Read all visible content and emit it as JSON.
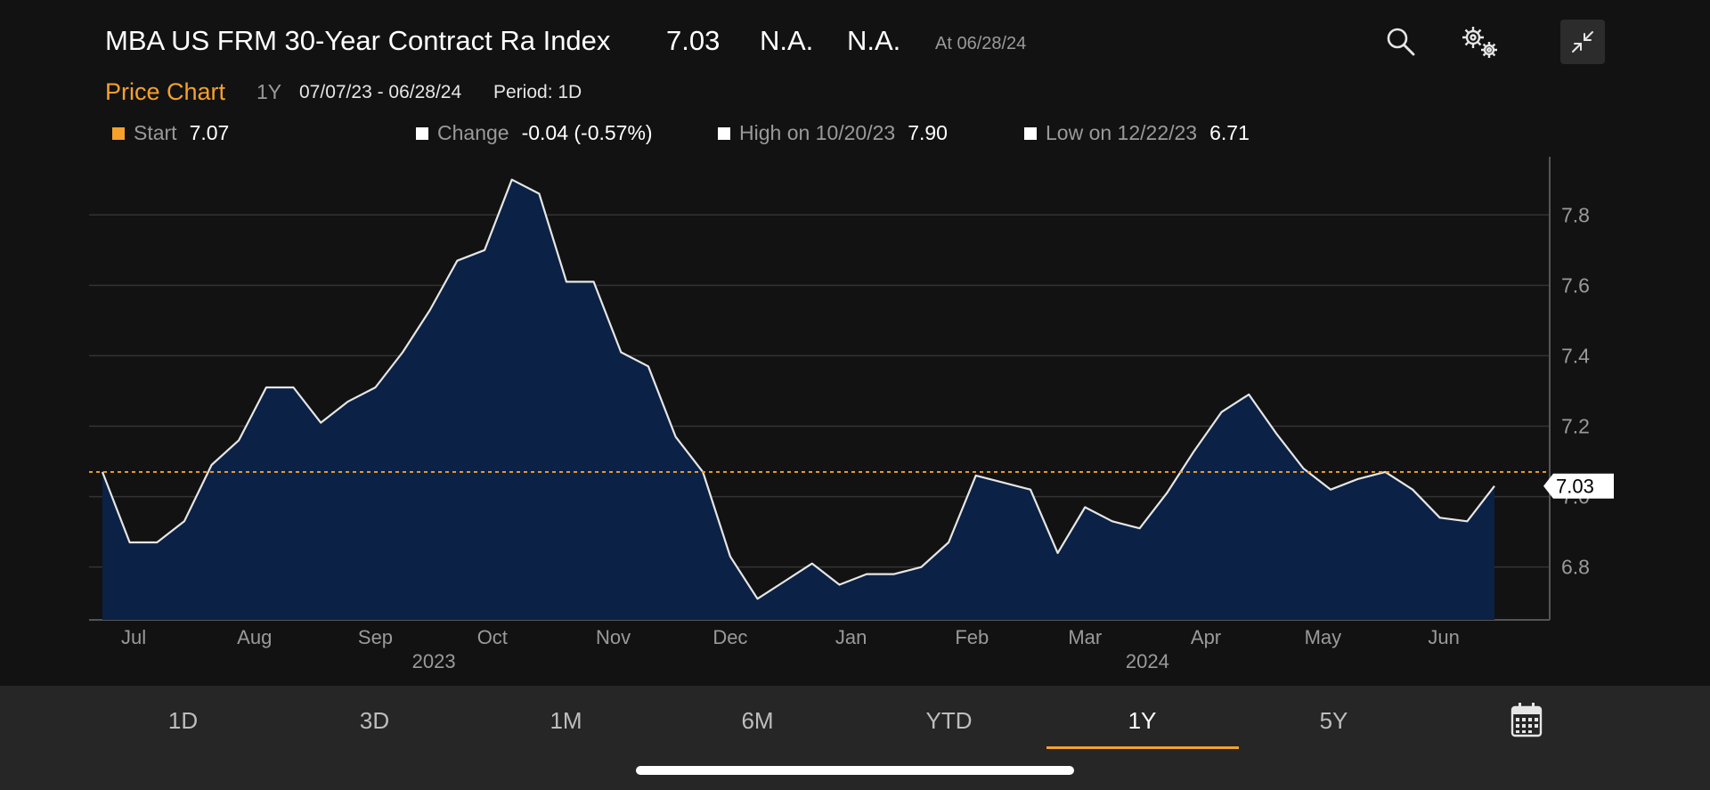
{
  "header": {
    "title": "MBA US FRM 30-Year Contract Ra Index",
    "last": "7.03",
    "change": "N.A.",
    "pct_change": "N.A.",
    "as_of": "At 06/28/24"
  },
  "sub_header": {
    "title": "Price Chart",
    "range": "1Y",
    "dates": "07/07/23 - 06/28/24",
    "period": "Period: 1D"
  },
  "stats": {
    "start_label": "Start",
    "start_value": "7.07",
    "change_label": "Change",
    "change_value": "-0.04 (-0.57%)",
    "high_label": "High on 10/20/23",
    "high_value": "7.90",
    "low_label": "Low on 12/22/23",
    "low_value": "6.71"
  },
  "colors": {
    "accent": "#f5a12c",
    "area_fill": "#0b2145",
    "line": "#e6e6e6"
  },
  "icons": [
    "search-icon",
    "gears-icon",
    "compress-icon",
    "calendar-icon"
  ],
  "chart_data": {
    "type": "area",
    "x": [
      "2023-07-07",
      "2023-07-14",
      "2023-07-21",
      "2023-07-28",
      "2023-08-04",
      "2023-08-11",
      "2023-08-18",
      "2023-08-25",
      "2023-09-01",
      "2023-09-08",
      "2023-09-15",
      "2023-09-22",
      "2023-09-29",
      "2023-10-06",
      "2023-10-13",
      "2023-10-20",
      "2023-10-27",
      "2023-11-03",
      "2023-11-10",
      "2023-11-17",
      "2023-11-24",
      "2023-12-01",
      "2023-12-08",
      "2023-12-15",
      "2023-12-22",
      "2023-12-29",
      "2024-01-05",
      "2024-01-12",
      "2024-01-19",
      "2024-01-26",
      "2024-02-02",
      "2024-02-09",
      "2024-02-16",
      "2024-02-23",
      "2024-03-01",
      "2024-03-08",
      "2024-03-15",
      "2024-03-22",
      "2024-03-29",
      "2024-04-05",
      "2024-04-12",
      "2024-04-19",
      "2024-04-26",
      "2024-05-03",
      "2024-05-10",
      "2024-05-17",
      "2024-05-24",
      "2024-05-31",
      "2024-06-07",
      "2024-06-14",
      "2024-06-21",
      "2024-06-28"
    ],
    "values": [
      7.07,
      6.87,
      6.87,
      6.93,
      7.09,
      7.16,
      7.31,
      7.31,
      7.21,
      7.27,
      7.31,
      7.41,
      7.53,
      7.67,
      7.7,
      7.9,
      7.86,
      7.61,
      7.61,
      7.41,
      7.37,
      7.17,
      7.07,
      6.83,
      6.71,
      6.76,
      6.81,
      6.75,
      6.78,
      6.78,
      6.8,
      6.87,
      7.06,
      7.04,
      7.02,
      6.84,
      6.97,
      6.93,
      6.91,
      7.01,
      7.13,
      7.24,
      7.29,
      7.18,
      7.08,
      7.02,
      7.05,
      7.07,
      7.02,
      6.94,
      6.93,
      7.03
    ],
    "reference_line": 7.07,
    "last_value_label": "7.03",
    "ylim": [
      6.65,
      7.96
    ],
    "y_ticks": [
      "6.8",
      "7.0",
      "7.2",
      "7.4",
      "7.6",
      "7.8"
    ],
    "month_labels": [
      "Jul",
      "Aug",
      "Sep",
      "Oct",
      "Nov",
      "Dec",
      "Jan",
      "Feb",
      "Mar",
      "Apr",
      "May",
      "Jun"
    ],
    "month_dates": [
      "2023-07-15",
      "2023-08-15",
      "2023-09-15",
      "2023-10-15",
      "2023-11-15",
      "2023-12-15",
      "2024-01-15",
      "2024-02-15",
      "2024-03-15",
      "2024-04-15",
      "2024-05-15",
      "2024-06-15"
    ],
    "year_labels": [
      "2023",
      "2024"
    ],
    "year_dates": [
      "2023-09-30",
      "2024-03-31"
    ],
    "grid": true,
    "axis_position": "right"
  },
  "tabs": [
    "1D",
    "3D",
    "1M",
    "6M",
    "YTD",
    "1Y",
    "5Y"
  ],
  "active_tab": "1Y"
}
